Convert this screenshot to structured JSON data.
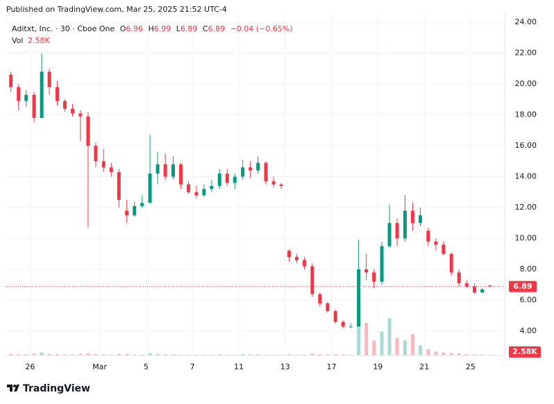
{
  "header": {
    "published": "Published on TradingView.com, Mar 25, 2025 21:52 UTC-4"
  },
  "legend": {
    "symbol": "Aditxt, Inc. · 30 · Cboe One",
    "open_key": "O",
    "high_key": "H",
    "low_key": "L",
    "close_key": "C",
    "change": {
      "value": -0.04,
      "label": "−0.04"
    },
    "change_pct": {
      "value": -0.65,
      "label": "(−0.65%)"
    },
    "volume_key": "Vol",
    "volume": {
      "value": 2580,
      "label": "2.58K"
    }
  },
  "footer": {
    "brand": "TradingView"
  },
  "chart_data": {
    "type": "candlestick",
    "up_color": "#089981",
    "down_color": "#f23645",
    "x": [
      0.17,
      0.5,
      0.83,
      1.17,
      1.5,
      1.83,
      2.17,
      2.5,
      2.83,
      3.17,
      3.5,
      3.83,
      4.17,
      4.5,
      4.83,
      5.17,
      5.5,
      5.83,
      6.17,
      6.5,
      6.83,
      7.17,
      7.5,
      7.83,
      8.17,
      8.5,
      8.83,
      9.17,
      9.5,
      9.83,
      10.17,
      10.5,
      10.83,
      11.17,
      11.5,
      11.83,
      12.17,
      12.5,
      12.83,
      13.17,
      13.5,
      13.83,
      14.17,
      14.5,
      14.83,
      15.17,
      15.5,
      15.83,
      16.17,
      16.5,
      16.83,
      17.17,
      17.5,
      17.83,
      18.17,
      18.5,
      18.83,
      19.17,
      19.5,
      19.83,
      20.17,
      20.5,
      20.83
    ],
    "open": [
      20.6,
      19.8,
      18.9,
      19.3,
      17.8,
      20.8,
      19.8,
      18.9,
      18.4,
      18.1,
      17.9,
      16.0,
      15.0,
      14.6,
      14.3,
      11.8,
      11.5,
      12.1,
      12.3,
      14.2,
      14.8,
      14.0,
      14.8,
      13.5,
      13.0,
      12.8,
      13.2,
      13.4,
      14.2,
      13.6,
      14.0,
      14.6,
      14.4,
      14.9,
      13.7,
      13.5,
      9.2,
      8.8,
      8.6,
      8.2,
      6.4,
      5.8,
      5.3,
      4.6,
      4.3,
      4.3,
      8.0,
      7.8,
      7.2,
      9.5,
      11.0,
      10.0,
      11.8,
      11.0,
      10.5,
      9.8,
      9.6,
      9.0,
      7.8,
      7.1,
      6.9,
      6.5,
      6.96
    ],
    "high": [
      20.8,
      20.0,
      19.6,
      19.5,
      22.0,
      21.0,
      20.2,
      19.0,
      18.7,
      18.3,
      18.2,
      16.2,
      15.8,
      14.9,
      14.5,
      12.5,
      12.4,
      12.8,
      16.7,
      15.6,
      15.5,
      15.3,
      14.9,
      13.7,
      13.4,
      13.5,
      13.8,
      14.5,
      14.5,
      14.2,
      15.1,
      15.0,
      15.3,
      15.0,
      14.0,
      13.6,
      9.3,
      9.0,
      8.8,
      8.4,
      6.5,
      5.9,
      5.4,
      4.7,
      4.5,
      9.9,
      9.0,
      8.0,
      9.8,
      12.2,
      11.3,
      12.8,
      12.3,
      12.0,
      10.7,
      10.0,
      9.8,
      9.1,
      8.0,
      7.3,
      7.1,
      6.8,
      6.99
    ],
    "low": [
      19.5,
      18.3,
      18.5,
      17.5,
      17.8,
      19.3,
      18.6,
      18.2,
      17.9,
      16.3,
      10.7,
      14.6,
      14.3,
      14.0,
      12.0,
      11.0,
      11.4,
      12.0,
      12.3,
      13.5,
      13.8,
      13.8,
      13.2,
      12.9,
      12.6,
      12.7,
      13.0,
      13.2,
      13.4,
      13.2,
      13.8,
      13.9,
      14.2,
      13.5,
      13.3,
      13.2,
      8.5,
      8.4,
      8.0,
      6.2,
      5.6,
      5.2,
      4.5,
      4.2,
      4.2,
      4.3,
      7.3,
      6.8,
      7.0,
      9.4,
      9.5,
      9.8,
      10.5,
      10.8,
      9.5,
      9.2,
      8.9,
      7.6,
      6.9,
      6.8,
      6.4,
      6.5,
      6.89
    ],
    "close": [
      19.8,
      18.9,
      19.3,
      17.8,
      20.8,
      19.8,
      18.9,
      18.4,
      18.1,
      17.9,
      16.0,
      15.0,
      14.6,
      14.3,
      12.5,
      11.5,
      12.1,
      12.3,
      14.2,
      14.8,
      14.0,
      14.8,
      13.5,
      13.0,
      12.8,
      13.2,
      13.4,
      14.2,
      13.6,
      14.0,
      14.6,
      14.4,
      14.9,
      13.7,
      13.5,
      13.4,
      8.8,
      8.6,
      8.2,
      6.4,
      5.8,
      5.3,
      4.6,
      4.3,
      4.3,
      8.0,
      7.8,
      7.2,
      9.5,
      11.0,
      10.0,
      11.8,
      11.0,
      11.5,
      9.8,
      9.6,
      9.0,
      7.8,
      7.1,
      6.9,
      6.5,
      6.7,
      6.89
    ],
    "volume": [
      6000,
      5000,
      4000,
      7000,
      12000,
      6000,
      5000,
      4000,
      3000,
      6000,
      9000,
      5000,
      4000,
      3000,
      7000,
      6000,
      4000,
      3000,
      9000,
      6000,
      4000,
      4000,
      3000,
      3000,
      3000,
      3000,
      3000,
      4000,
      3000,
      3000,
      5000,
      4000,
      4000,
      3000,
      3000,
      2000,
      5000,
      3000,
      3000,
      8000,
      5000,
      4000,
      5000,
      4000,
      3000,
      210000,
      130000,
      60000,
      95000,
      150000,
      70000,
      60000,
      85000,
      40000,
      25000,
      15000,
      12000,
      9000,
      8000,
      5000,
      4000,
      3000,
      2580
    ],
    "vlim": [
      0,
      250000
    ],
    "ylim": [
      2.43,
      24.54
    ],
    "yticks": [
      {
        "value": 4,
        "label": "4.00"
      },
      {
        "value": 6,
        "label": "6.00"
      },
      {
        "value": 8,
        "label": "8.00"
      },
      {
        "value": 10,
        "label": "10.00"
      },
      {
        "value": 12,
        "label": "12.00"
      },
      {
        "value": 14,
        "label": "14.00"
      },
      {
        "value": 16,
        "label": "16.00"
      },
      {
        "value": 18,
        "label": "18.00"
      },
      {
        "value": 20,
        "label": "20.00"
      },
      {
        "value": 22,
        "label": "22.00"
      },
      {
        "value": 24,
        "label": "24.00"
      }
    ],
    "xlim": [
      -0.06,
      21.47
    ],
    "xticks": [
      {
        "value": 1,
        "label": "26"
      },
      {
        "value": 4,
        "label": "Mar"
      },
      {
        "value": 6,
        "label": "5"
      },
      {
        "value": 8,
        "label": "7"
      },
      {
        "value": 10,
        "label": "11"
      },
      {
        "value": 12,
        "label": "13"
      },
      {
        "value": 14,
        "label": "17"
      },
      {
        "value": 16,
        "label": "19"
      },
      {
        "value": 18,
        "label": "21"
      },
      {
        "value": 20,
        "label": "25"
      }
    ],
    "grid": true
  }
}
